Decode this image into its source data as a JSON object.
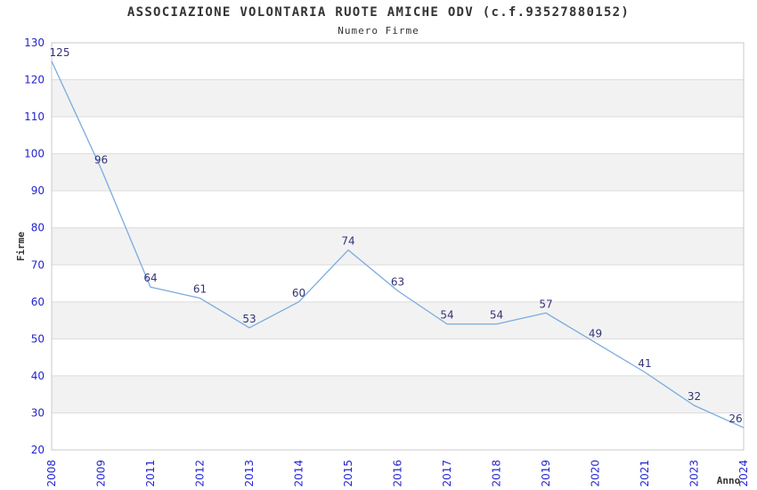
{
  "chart_data": {
    "type": "line",
    "title": "ASSOCIAZIONE VOLONTARIA RUOTE AMICHE ODV (c.f.93527880152)",
    "subtitle": "Numero Firme",
    "xlabel": "Anno",
    "ylabel": "Firme",
    "categories": [
      "2008",
      "2009",
      "2011",
      "2012",
      "2013",
      "2014",
      "2015",
      "2016",
      "2017",
      "2018",
      "2019",
      "2020",
      "2021",
      "2023",
      "2024"
    ],
    "values": [
      125,
      96,
      64,
      61,
      53,
      60,
      74,
      63,
      54,
      54,
      57,
      49,
      41,
      32,
      26
    ],
    "ylim": [
      20,
      130
    ],
    "ytick_step": 10,
    "grid": true,
    "alternating_bands": true,
    "legend": "none",
    "x_tick_rotation": -90,
    "colors": {
      "line": "#7aabe0",
      "tick_label": "#2424d0",
      "data_label": "#333377",
      "band": "#f2f2f2",
      "grid": "#dcdcdc",
      "border": "#c9c9c9",
      "text": "#333333",
      "background": "#ffffff"
    }
  }
}
